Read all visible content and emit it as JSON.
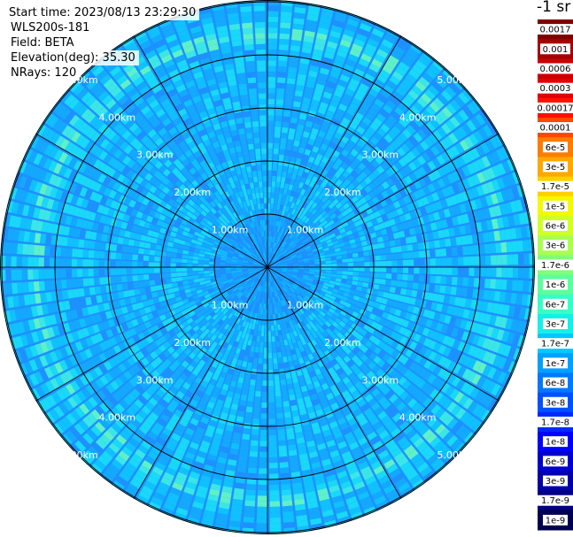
{
  "header": {
    "start_time": "Start time: 2023/08/13 23:29:30",
    "device": "WLS200s-181",
    "field": "Field: BETA",
    "elevation": "Elevation(deg): 35.30",
    "nrays": "NRays: 120"
  },
  "colorbar": {
    "unit": "-1 sr",
    "labels": [
      "0.0017",
      "0.001",
      "0.0006",
      "0.0003",
      "0.00017",
      "0.0001",
      "6e-5",
      "3e-5",
      "1.7e-5",
      "1e-5",
      "6e-6",
      "3e-6",
      "1.7e-6",
      "1e-6",
      "6e-7",
      "3e-7",
      "1.7e-7",
      "1e-7",
      "6e-8",
      "3e-8",
      "1.7e-8",
      "1e-8",
      "6e-9",
      "3e-9",
      "1.7e-9",
      "1e-9"
    ],
    "colors": [
      "#7f0000",
      "#a50000",
      "#c80000",
      "#e00000",
      "#ff1000",
      "#ff4800",
      "#ff7c00",
      "#ffa800",
      "#ffd000",
      "#f4f800",
      "#d0ff26",
      "#a8ff50",
      "#80ff78",
      "#5cff9c",
      "#38ffc4",
      "#14f0e8",
      "#00c8ff",
      "#00a0ff",
      "#0078ff",
      "#0050ff",
      "#0028ff",
      "#0000ff",
      "#0000d0",
      "#0000a8",
      "#000080",
      "#000050"
    ]
  },
  "chart_data": {
    "type": "heatmap",
    "plot": "PPI (polar)",
    "n_rays": 120,
    "range_rings_km": [
      1.0,
      2.0,
      3.0,
      4.0,
      5.0
    ],
    "range_ring_labels": [
      "1.00km",
      "2.00km",
      "3.00km",
      "4.00km",
      "5.00km"
    ],
    "azimuth_lines_deg": [
      0,
      30,
      60,
      90,
      120,
      150,
      180,
      210,
      240,
      270,
      300,
      330
    ],
    "color_scale": "log",
    "value_range": [
      1e-09,
      0.0017
    ],
    "dominant_value": "1.7e-8 to 1e-7",
    "enhanced_ring_km": 4.4,
    "enhanced_ring_value": "1e-6 to 3e-6"
  }
}
